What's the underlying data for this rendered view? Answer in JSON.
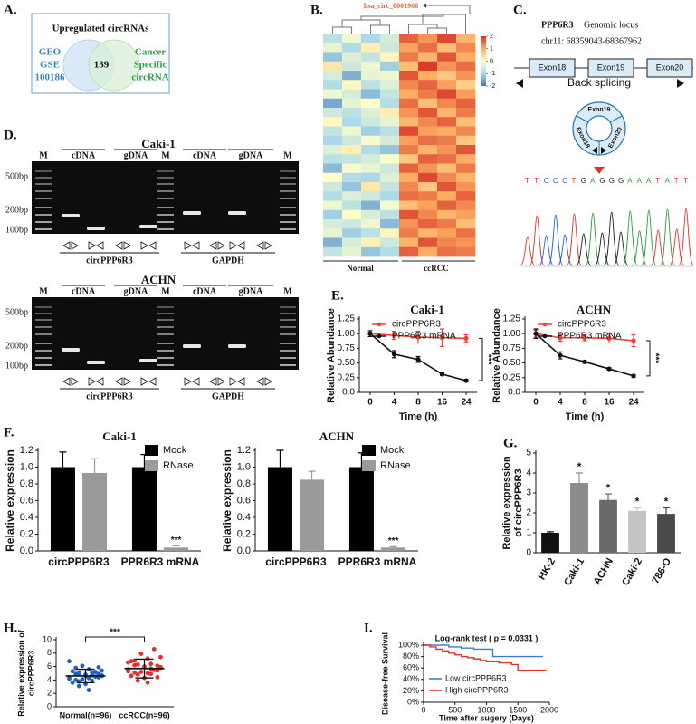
{
  "panels": [
    "A.",
    "B.",
    "C.",
    "D.",
    "E.",
    "F.",
    "G.",
    "H.",
    "I."
  ],
  "venn": {
    "title": "Upregulated circRNAs",
    "left": [
      "GEO",
      "GSE",
      "100186"
    ],
    "overlap": "139",
    "right": [
      "Cancer",
      "Specific",
      "circRNA"
    ]
  },
  "heatmap": {
    "highlight": "hsa_circ_0001968",
    "colorbar_ticks": [
      2,
      1,
      0,
      -1,
      -2
    ],
    "groups": [
      "Normal",
      "ccRCC"
    ],
    "values": [
      [
        -0.8,
        -0.2,
        -1.0,
        -0.5,
        1.6,
        1.2,
        1.8,
        0.9
      ],
      [
        -0.3,
        -0.9,
        0.2,
        -0.6,
        1.1,
        1.5,
        0.8,
        1.3
      ],
      [
        -1.2,
        -0.4,
        -0.7,
        0.1,
        1.4,
        0.9,
        1.7,
        1.0
      ],
      [
        0.3,
        -0.6,
        -0.2,
        -1.1,
        0.8,
        1.9,
        1.2,
        1.5
      ],
      [
        -0.5,
        -1.4,
        -0.3,
        -0.2,
        1.7,
        1.0,
        0.7,
        1.2
      ],
      [
        -0.9,
        0.1,
        -0.8,
        -0.4,
        1.3,
        1.6,
        1.1,
        0.6
      ],
      [
        -0.2,
        -0.5,
        -1.3,
        -0.7,
        1.0,
        1.4,
        1.8,
        1.1
      ],
      [
        -1.5,
        -0.3,
        0.0,
        -0.9,
        1.5,
        0.8,
        1.3,
        1.6
      ],
      [
        -0.6,
        -0.8,
        -0.4,
        0.2,
        1.2,
        1.7,
        0.9,
        1.4
      ],
      [
        0.1,
        -1.0,
        -0.6,
        -0.3,
        0.9,
        1.3,
        1.6,
        0.8
      ],
      [
        -0.7,
        -0.2,
        -1.1,
        -0.8,
        1.8,
        1.1,
        1.0,
        1.3
      ],
      [
        -1.0,
        -0.6,
        -0.1,
        -0.5,
        1.1,
        1.5,
        1.4,
        0.7
      ],
      [
        -0.4,
        0.2,
        -0.9,
        -1.2,
        1.4,
        0.9,
        1.2,
        1.7
      ],
      [
        -0.8,
        -0.7,
        -0.5,
        0.0,
        0.7,
        1.6,
        1.5,
        1.0
      ],
      [
        -1.3,
        -0.1,
        -0.3,
        -0.6,
        1.6,
        1.2,
        0.8,
        1.4
      ],
      [
        0.0,
        -0.9,
        -1.0,
        -0.4,
        1.0,
        1.8,
        1.3,
        0.9
      ],
      [
        -0.6,
        -1.2,
        0.3,
        -0.7,
        1.3,
        0.7,
        1.7,
        1.2
      ],
      [
        -0.9,
        -0.4,
        -0.6,
        -1.0,
        1.5,
        1.4,
        1.0,
        1.6
      ],
      [
        -0.2,
        -0.8,
        -1.4,
        -0.1,
        0.8,
        1.1,
        1.6,
        1.3
      ],
      [
        -1.1,
        0.0,
        -0.5,
        -0.8,
        1.7,
        1.3,
        0.9,
        1.1
      ],
      [
        -0.5,
        -0.6,
        -0.2,
        -1.3,
        1.2,
        1.6,
        1.4,
        0.8
      ],
      [
        -0.3,
        -1.1,
        -0.8,
        0.1,
        1.4,
        0.9,
        1.1,
        1.5
      ],
      [
        -1.4,
        -0.5,
        0.2,
        -0.6,
        0.9,
        1.7,
        1.3,
        1.2
      ],
      [
        -0.7,
        -0.3,
        -1.2,
        -0.9,
        1.6,
        1.0,
        1.5,
        1.4
      ]
    ]
  },
  "locus": {
    "gene": "PPP6R3",
    "label": "Genomic locus",
    "position": "chr11: 68359043-68367962",
    "exons": [
      "Exon18",
      "Exon19",
      "Exon20"
    ],
    "splice_label": "Back splicing",
    "sequence": "TTCCCTGAGGGAAATATT"
  },
  "gel": {
    "panels": [
      {
        "title": "Caki-1"
      },
      {
        "title": "ACHN"
      }
    ],
    "marker": "M",
    "lanes": [
      "cDNA",
      "gDNA"
    ],
    "sizes": [
      "500bp",
      "200bp",
      "100bp"
    ],
    "targets": [
      "circPPP6R3",
      "GAPDH"
    ]
  },
  "chart_data": [
    {
      "type": "line",
      "title": "Caki-1",
      "categories": [
        "0",
        "4",
        "8",
        "16",
        "24"
      ],
      "xlabel": "Time (h)",
      "ylabel": "Relative Abundance",
      "ylim": [
        0,
        1.25
      ],
      "yticks": [
        {
          "value": 0,
          "label": "0.0"
        },
        0.25,
        {
          "value": 0.5,
          "label": "0.50"
        },
        0.75,
        {
          "value": 1,
          "label": "1.00"
        },
        1.25
      ],
      "series": [
        {
          "name": "circPPP6R3",
          "color": "#e8443a",
          "values": [
            1.0,
            0.97,
            0.94,
            0.93,
            0.92
          ],
          "errors": [
            0.05,
            0.07,
            0.1,
            0.15,
            0.06
          ]
        },
        {
          "name": "PPP6R3 mRNA",
          "color": "#111111",
          "values": [
            1.0,
            0.65,
            0.56,
            0.31,
            0.2
          ],
          "errors": [
            0.05,
            0.06,
            0.05,
            0.02,
            0.02
          ]
        }
      ],
      "annotation": "***"
    },
    {
      "type": "line",
      "title": "ACHN",
      "categories": [
        "0",
        "4",
        "8",
        "16",
        "24"
      ],
      "xlabel": "Time (h)",
      "ylabel": "Relative Abundance",
      "ylim": [
        0,
        1.25
      ],
      "yticks": [
        {
          "value": 0,
          "label": "0.0"
        },
        0.25,
        {
          "value": 0.5,
          "label": "0.50"
        },
        0.75,
        {
          "value": 1,
          "label": "1.00"
        },
        1.25
      ],
      "series": [
        {
          "name": "circPPP6R3",
          "color": "#e8443a",
          "values": [
            1.0,
            0.93,
            0.93,
            0.92,
            0.88
          ],
          "errors": [
            0.06,
            0.06,
            0.05,
            0.08,
            0.1
          ]
        },
        {
          "name": "PPP6R3 mRNA",
          "color": "#111111",
          "values": [
            1.0,
            0.63,
            0.52,
            0.4,
            0.28
          ],
          "errors": [
            0.08,
            0.06,
            0.02,
            0.02,
            0.02
          ]
        }
      ],
      "annotation": "***"
    },
    {
      "type": "bar",
      "title": "Caki-1",
      "categories": [
        "circPPP6R3",
        "PPR6R3 mRNA"
      ],
      "ylabel": "Relative expression",
      "ylim": [
        0,
        1.2
      ],
      "yticks": [
        {
          "value": 0,
          "label": "0.0"
        },
        0.2,
        0.4,
        0.6,
        0.8,
        {
          "value": 1,
          "label": "1.0"
        },
        1.2
      ],
      "series": [
        {
          "name": "Mock",
          "color": "#000000",
          "values": [
            1.0,
            1.0
          ],
          "errors": [
            0.18,
            0.15
          ]
        },
        {
          "name": "RNase",
          "color": "#9a9a9a",
          "values": [
            0.93,
            0.04
          ],
          "errors": [
            0.17,
            0.02
          ]
        }
      ],
      "annotation": "***"
    },
    {
      "type": "bar",
      "title": "ACHN",
      "categories": [
        "circPPP6R3",
        "PPR6R3 mRNA"
      ],
      "ylabel": "Relative expression",
      "ylim": [
        0,
        1.2
      ],
      "yticks": [
        {
          "value": 0,
          "label": "0.0"
        },
        0.2,
        0.4,
        0.6,
        0.8,
        {
          "value": 1,
          "label": "1.0"
        },
        1.2
      ],
      "series": [
        {
          "name": "Mock",
          "color": "#000000",
          "values": [
            1.0,
            1.0
          ],
          "errors": [
            0.2,
            0.17
          ]
        },
        {
          "name": "RNase",
          "color": "#9a9a9a",
          "values": [
            0.85,
            0.04
          ],
          "errors": [
            0.1,
            0.01
          ]
        }
      ],
      "annotation": "***"
    },
    {
      "type": "bar",
      "categories": [
        "HK-2",
        "Caki-1",
        "ACHN",
        "Caki-2",
        "786-O"
      ],
      "ylabel": [
        "Relative expression",
        "of circPPP6R3"
      ],
      "ylim": [
        0,
        5
      ],
      "yticks": [
        0,
        1,
        2,
        3,
        4,
        5
      ],
      "values": [
        1.0,
        3.5,
        2.65,
        2.1,
        1.95
      ],
      "errors": [
        0.05,
        0.5,
        0.3,
        0.15,
        0.3
      ],
      "colors": [
        "#111111",
        "#8c8c8c",
        "#6a6a6a",
        "#c4c4c4",
        "#4a4a4a"
      ],
      "annotations": [
        null,
        "*",
        "*",
        "*",
        "*"
      ]
    },
    {
      "type": "scatter",
      "categories": [
        "Normal(n=96)",
        "ccRCC(n=96)"
      ],
      "ylabel": [
        "Relative expression of",
        "circPPP6R3"
      ],
      "ylim": [
        0,
        10
      ],
      "yticks": [
        0,
        2,
        4,
        6,
        8,
        10
      ],
      "groups": [
        {
          "color": "#1f5fbf",
          "mean": 4.6,
          "sd": 1.0,
          "values": [
            4.2,
            5.1,
            3.8,
            4.7,
            5.6,
            4.0,
            4.9,
            3.4,
            5.3,
            4.5,
            6.1,
            4.3,
            3.9,
            5.0,
            4.6,
            2.5,
            5.8,
            4.4,
            4.8,
            3.6,
            5.2,
            4.1,
            6.8,
            4.7,
            3.1,
            5.4,
            4.3,
            4.9,
            5.9,
            4.6
          ]
        },
        {
          "color": "#e03030",
          "mean": 5.7,
          "sd": 1.4,
          "values": [
            5.6,
            6.4,
            4.8,
            5.9,
            7.2,
            5.1,
            6.1,
            4.3,
            6.8,
            5.5,
            7.9,
            5.3,
            4.9,
            6.3,
            5.8,
            3.6,
            6.9,
            5.4,
            6.0,
            4.6,
            8.6,
            5.2,
            6.6,
            5.7,
            3.9,
            7.4,
            5.0,
            6.2,
            4.4,
            5.9
          ]
        }
      ],
      "annotation": "***"
    },
    {
      "type": "step",
      "title": "Log-rank test ( p = 0.0331 )",
      "xlabel": "Time after sugery (Days)",
      "ylabel": "Disease-free Survival",
      "xlim": [
        0,
        2000
      ],
      "xticks": [
        0,
        500,
        1000,
        1500,
        2000
      ],
      "ylim": [
        0,
        100
      ],
      "yticks": [
        {
          "value": 0,
          "label": "0%"
        },
        {
          "value": 20,
          "label": "20%"
        },
        {
          "value": 40,
          "label": "40%"
        },
        {
          "value": 60,
          "label": "60%"
        },
        {
          "value": 80,
          "label": "80%"
        },
        {
          "value": 100,
          "label": "100%"
        }
      ],
      "series": [
        {
          "name": "Low circPPP6R3",
          "color": "#3a7fd5",
          "x": [
            0,
            200,
            400,
            600,
            800,
            1000,
            1100,
            1900
          ],
          "y": [
            100,
            100,
            97,
            95,
            93,
            93,
            80,
            80
          ]
        },
        {
          "name": "High circPPP6R3",
          "color": "#e03030",
          "x": [
            0,
            100,
            200,
            300,
            400,
            500,
            600,
            700,
            800,
            900,
            1000,
            1200,
            1400,
            1500,
            1950
          ],
          "y": [
            100,
            97,
            93,
            90,
            86,
            83,
            80,
            78,
            76,
            73,
            71,
            69,
            66,
            56,
            56
          ]
        }
      ]
    }
  ]
}
